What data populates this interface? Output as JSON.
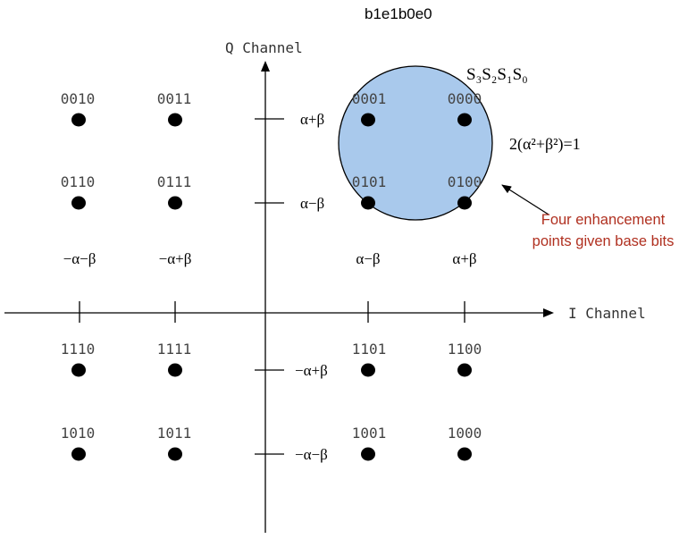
{
  "header": {
    "bit_order_label": "b1e1b0e0"
  },
  "axes": {
    "q_label": "Q Channel",
    "i_label": "I Channel",
    "i_ticks": [
      "−α−β",
      "−α+β",
      "α−β",
      "α+β"
    ],
    "q_ticks": [
      "α+β",
      "α−β",
      "−α+β",
      "−α−β"
    ]
  },
  "symbols": [
    [
      "0010",
      "0011",
      "0001",
      "0000"
    ],
    [
      "0110",
      "0111",
      "0101",
      "0100"
    ],
    [
      "1110",
      "1111",
      "1101",
      "1100"
    ],
    [
      "1010",
      "1011",
      "1001",
      "1000"
    ]
  ],
  "enhancement_region": {
    "symbol_order_label": "S₃S₂S₁S₀",
    "radius_equation": "2(α²+β²)=1",
    "callout_line1": "Four enhancement",
    "callout_line2": "points given base bits",
    "fill_color": "#a9c9ec",
    "callout_color": "#b03020"
  }
}
